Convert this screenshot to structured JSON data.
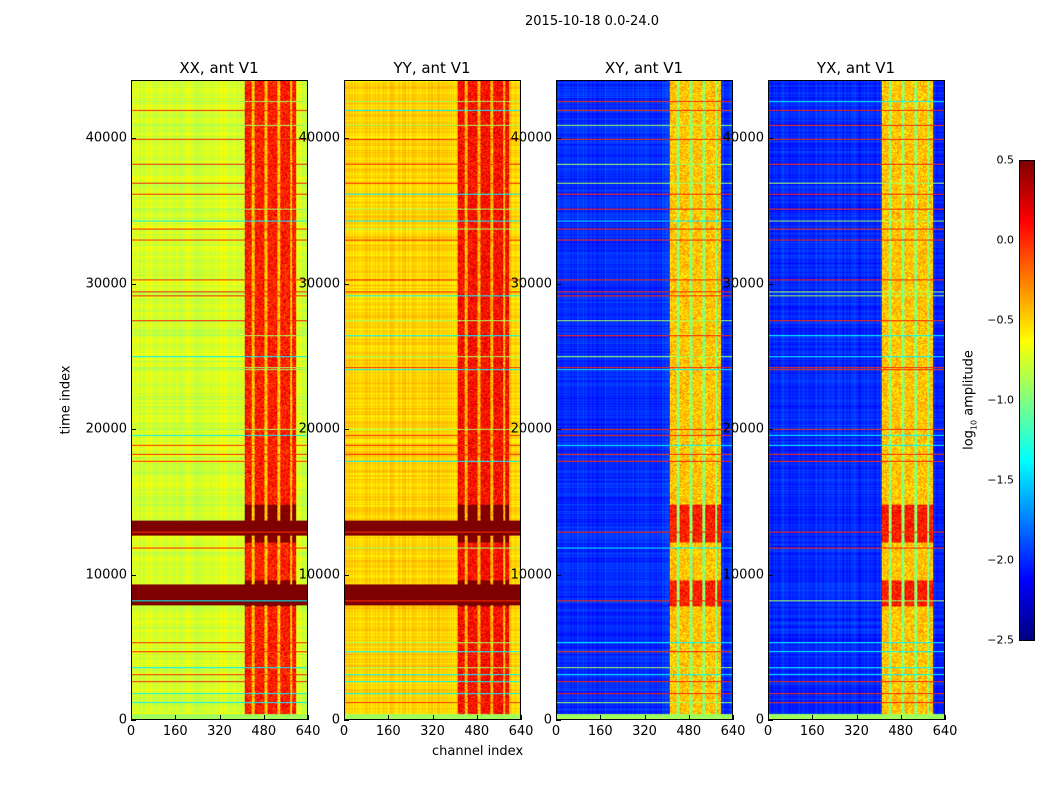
{
  "chart_data": {
    "type": "heatmap",
    "title": "2015-10-18 0.0-24.0",
    "xlabel": "channel index",
    "ylabel": "time index",
    "xlim": [
      0,
      640
    ],
    "ylim": [
      0,
      44000
    ],
    "xticks": [
      "0",
      "160",
      "320",
      "480",
      "640"
    ],
    "yticks": [
      "0",
      "10000",
      "20000",
      "30000",
      "40000"
    ],
    "yvalues": [
      0,
      10000,
      20000,
      30000,
      40000
    ],
    "xvalues": [
      0,
      160,
      320,
      480,
      640
    ],
    "panels": [
      {
        "title": "XX, ant V1",
        "base": -0.75,
        "band": 0.05,
        "flag_base": 0.5
      },
      {
        "title": "YY, ant V1",
        "base": -0.5,
        "band": 0.1,
        "flag_base": 0.5
      },
      {
        "title": "XY, ant V1",
        "base": -2.0,
        "band": -0.45,
        "flag_base": 0.0
      },
      {
        "title": "YX, ant V1",
        "base": -2.0,
        "band": -0.45,
        "flag_base": 0.0
      }
    ],
    "bright_channel_range": [
      410,
      600
    ],
    "saturated_time_ranges": [
      [
        7800,
        9600
      ],
      [
        12200,
        14800
      ]
    ],
    "flagged_time_rows": [
      1200,
      1800,
      2600,
      3100,
      3600,
      4700,
      5300,
      8200,
      11800,
      12900,
      17800,
      18300,
      18900,
      19600,
      20000,
      24100,
      24300,
      25000,
      26500,
      27500,
      29200,
      29500,
      30300,
      33100,
      33800,
      34400,
      35200,
      36200,
      37000,
      38300,
      40000,
      41000,
      42000,
      42600
    ],
    "colorbar": {
      "label": "log10 amplitude",
      "label_base": "log",
      "label_sub": "10",
      "label_rest": " amplitude",
      "range": [
        -2.5,
        0.5
      ],
      "ticks": [
        "0.5",
        "0.0",
        "−0.5",
        "−1.0",
        "−1.5",
        "−2.0",
        "−2.5"
      ],
      "tick_values": [
        0.5,
        0,
        -0.5,
        -1,
        -1.5,
        -2,
        -2.5
      ],
      "colormap": "jet"
    }
  }
}
